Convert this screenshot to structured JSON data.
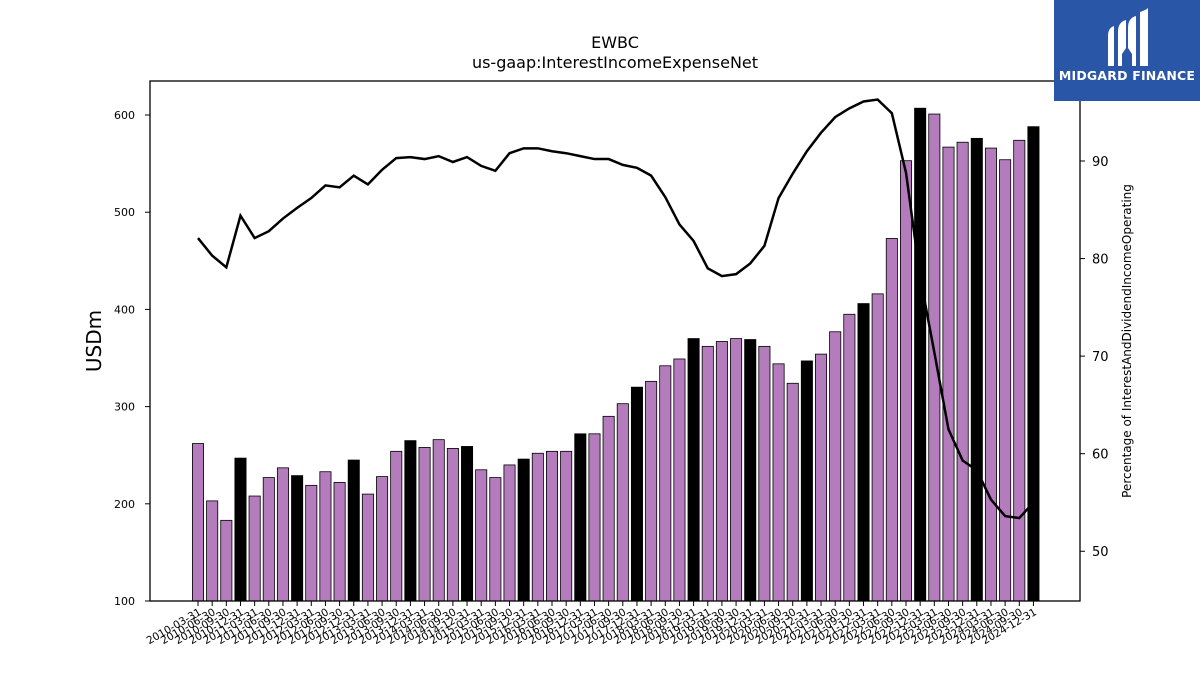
{
  "logo": {
    "text": "MIDGARD FINANCE"
  },
  "chart_data": {
    "type": "bar",
    "title": "EWBC",
    "subtitle": "us-gaap:InterestIncomeExpenseNet",
    "ylabel": "USDm",
    "y2label": "Percentage of InterestAndDividendIncomeOperating",
    "ylim": [
      100,
      635
    ],
    "y2lim": [
      44.9,
      98.2
    ],
    "yticks": [
      100,
      200,
      300,
      400,
      500,
      600
    ],
    "y2ticks": [
      50,
      60,
      70,
      80,
      90
    ],
    "colors": {
      "bar_quarter": "#b57cbd",
      "bar_q4": "#000000",
      "line": "#000000"
    },
    "categories": [
      "2010-03-31",
      "2010-06-30",
      "2010-09-30",
      "2010-12-31",
      "2011-03-31",
      "2011-06-30",
      "2011-09-30",
      "2011-12-31",
      "2012-03-31",
      "2012-06-30",
      "2012-09-30",
      "2012-12-31",
      "2013-03-31",
      "2013-06-30",
      "2013-09-30",
      "2013-12-31",
      "2014-03-31",
      "2014-06-30",
      "2014-09-30",
      "2014-12-31",
      "2015-03-31",
      "2015-06-30",
      "2015-09-30",
      "2015-12-31",
      "2016-03-31",
      "2016-06-30",
      "2016-09-30",
      "2016-12-31",
      "2017-03-31",
      "2017-06-30",
      "2017-09-30",
      "2017-12-31",
      "2018-03-31",
      "2018-06-30",
      "2018-09-30",
      "2018-12-31",
      "2019-03-31",
      "2019-06-30",
      "2019-09-30",
      "2019-12-31",
      "2020-03-31",
      "2020-06-30",
      "2020-09-30",
      "2020-12-31",
      "2021-03-31",
      "2021-06-30",
      "2021-09-30",
      "2021-12-31",
      "2022-03-31",
      "2022-06-30",
      "2022-09-30",
      "2022-12-31",
      "2023-03-31",
      "2023-06-30",
      "2023-09-30",
      "2023-12-31",
      "2024-03-31",
      "2024-06-30",
      "2024-09-30",
      "2024-12-31"
    ],
    "series": [
      {
        "name": "us-gaap:InterestIncomeExpenseNet",
        "axis": "left",
        "values": [
          262,
          203,
          183,
          247,
          208,
          227,
          237,
          229,
          219,
          233,
          222,
          245,
          210,
          228,
          254,
          265,
          258,
          266,
          257,
          259,
          235,
          227,
          240,
          246,
          252,
          254,
          254,
          272,
          272,
          290,
          303,
          320,
          326,
          342,
          349,
          370,
          362,
          367,
          370,
          369,
          362,
          344,
          324,
          347,
          354,
          377,
          395,
          406,
          416,
          473,
          553,
          607,
          601,
          567,
          572,
          576,
          566,
          554,
          574,
          588
        ],
        "q4_highlight_indices": [
          3,
          7,
          11,
          15,
          19,
          23,
          27,
          31,
          35,
          39,
          43,
          47,
          51,
          55,
          59
        ]
      },
      {
        "name": "Percentage of InterestAndDividendIncomeOperating",
        "axis": "right",
        "values": [
          82.1,
          80.3,
          79.1,
          84.4,
          82.1,
          82.8,
          84.1,
          85.2,
          86.2,
          87.5,
          87.3,
          88.5,
          87.6,
          89.1,
          90.3,
          90.4,
          90.2,
          90.5,
          89.9,
          90.4,
          89.5,
          89.0,
          90.8,
          91.3,
          91.3,
          91.0,
          90.8,
          90.5,
          90.2,
          90.2,
          89.6,
          89.3,
          88.5,
          86.3,
          83.5,
          81.8,
          79.0,
          78.2,
          78.4,
          79.5,
          81.3,
          86.2,
          88.7,
          91.0,
          92.9,
          94.5,
          95.4,
          96.1,
          96.3,
          94.9,
          88.8,
          78.1,
          70.4,
          62.5,
          59.3,
          58.3,
          55.3,
          53.6,
          53.4,
          55.0
        ]
      }
    ]
  }
}
